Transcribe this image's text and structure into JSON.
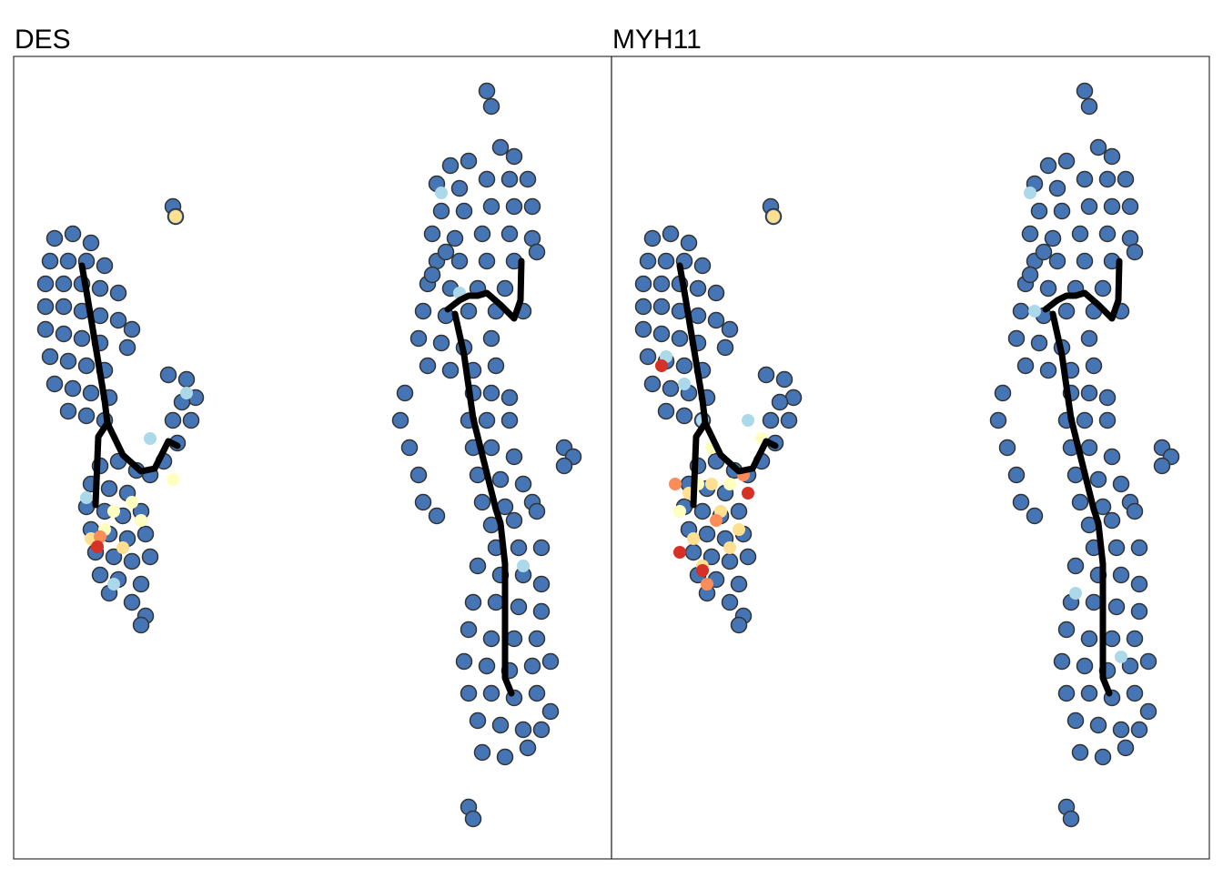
{
  "chart_data": {
    "type": "scatter",
    "xlim": [
      0,
      657
    ],
    "ylim": [
      882,
      0
    ],
    "color": "#4575b4",
    "x": [
      45,
      65,
      85,
      40,
      60,
      80,
      100,
      35,
      55,
      75,
      95,
      115,
      35,
      55,
      75,
      95,
      115,
      130,
      35,
      55,
      75,
      95,
      125,
      40,
      60,
      80,
      100,
      45,
      65,
      85,
      105,
      60,
      80,
      100,
      170,
      190,
      200,
      185,
      175,
      195,
      180,
      165,
      150,
      95,
      115,
      135,
      85,
      105,
      125,
      80,
      100,
      120,
      140,
      85,
      105,
      125,
      145,
      90,
      110,
      130,
      150,
      95,
      115,
      140,
      105,
      130,
      145,
      140,
      175,
      178,
      480,
      500,
      535,
      550,
      465,
      490,
      520,
      545,
      565,
      470,
      495,
      525,
      550,
      570,
      460,
      485,
      515,
      545,
      570,
      465,
      490,
      520,
      550,
      575,
      455,
      480,
      510,
      540,
      450,
      475,
      500,
      530,
      560,
      445,
      470,
      495,
      525,
      455,
      480,
      505,
      530,
      430,
      425,
      435,
      445,
      450,
      465,
      475,
      460,
      505,
      525,
      545,
      500,
      520,
      545,
      505,
      525,
      550,
      510,
      535,
      560,
      515,
      540,
      570,
      525,
      550,
      575,
      530,
      555,
      580,
      535,
      560,
      580,
      510,
      505,
      530,
      555,
      580,
      500,
      525,
      550,
      575,
      495,
      520,
      545,
      570,
      590,
      500,
      525,
      550,
      575,
      590,
      510,
      535,
      560,
      580,
      515,
      540,
      565,
      500,
      505,
      520,
      525,
      605,
      615,
      605
    ],
    "y": [
      200,
      195,
      205,
      225,
      225,
      225,
      230,
      250,
      250,
      250,
      255,
      260,
      275,
      275,
      280,
      285,
      290,
      300,
      300,
      305,
      310,
      315,
      320,
      330,
      335,
      340,
      345,
      360,
      365,
      370,
      375,
      390,
      395,
      400,
      350,
      355,
      375,
      380,
      400,
      400,
      425,
      445,
      460,
      450,
      445,
      455,
      470,
      475,
      480,
      495,
      500,
      505,
      500,
      520,
      525,
      530,
      525,
      545,
      550,
      555,
      550,
      570,
      575,
      580,
      590,
      600,
      615,
      625,
      165,
      176,
      120,
      115,
      100,
      110,
      140,
      145,
      135,
      135,
      135,
      170,
      170,
      165,
      165,
      165,
      195,
      200,
      195,
      195,
      200,
      225,
      225,
      225,
      225,
      215,
      250,
      255,
      255,
      255,
      280,
      285,
      280,
      280,
      280,
      310,
      315,
      320,
      310,
      340,
      345,
      345,
      340,
      370,
      400,
      430,
      460,
      490,
      505,
      215,
      240,
      370,
      370,
      375,
      400,
      400,
      400,
      430,
      430,
      440,
      460,
      465,
      470,
      490,
      495,
      490,
      515,
      510,
      500,
      540,
      540,
      540,
      570,
      570,
      580,
      560,
      600,
      600,
      605,
      610,
      630,
      640,
      640,
      640,
      665,
      670,
      675,
      670,
      665,
      700,
      700,
      705,
      700,
      720,
      730,
      735,
      740,
      740,
      765,
      770,
      760,
      825,
      838,
      38,
      55,
      430,
      440,
      450
    ],
    "lines": [
      {
        "x": [
          75,
          80,
          90,
          100,
          103,
          93,
          90
        ],
        "y": [
          230,
          258,
          318,
          378,
          403,
          418,
          493
        ]
      },
      {
        "x": [
          103,
          120,
          140,
          155,
          170,
          180
        ],
        "y": [
          403,
          438,
          456,
          453,
          423,
          428
        ]
      },
      {
        "x": [
          477,
          490,
          500,
          510,
          520,
          535,
          550,
          557,
          558
        ],
        "y": [
          278,
          268,
          263,
          263,
          260,
          273,
          288,
          268,
          225
        ]
      },
      {
        "x": [
          485,
          495,
          505,
          515,
          530,
          535,
          540,
          540,
          540,
          547
        ],
        "y": [
          283,
          328,
          398,
          438,
          498,
          513,
          558,
          638,
          683,
          700
        ]
      }
    ],
    "facets": [
      {
        "title": "DES",
        "series": [
          {
            "color": "#abd9e9",
            "x": [
              80,
              150,
              190,
              110,
              470,
              490,
              560
            ],
            "y": [
              485,
              420,
              370,
              580,
              150,
              260,
              560
            ]
          },
          {
            "color": "#ffffbf",
            "x": [
              110,
              130,
              100,
              140,
              175
            ],
            "y": [
              500,
              490,
              520,
              510,
              465
            ]
          },
          {
            "color": "#fee090",
            "x": [
              85,
              120,
              178
            ],
            "y": [
              530,
              540,
              176
            ]
          },
          {
            "color": "#fc8d59",
            "x": [
              95
            ],
            "y": [
              528
            ]
          },
          {
            "color": "#d73027",
            "x": [
              92
            ],
            "y": [
              539
            ]
          }
        ]
      },
      {
        "title": "MYH11",
        "series": [
          {
            "color": "#abd9e9",
            "x": [
              60,
              80,
              100,
              150,
              460,
              465,
              510,
              560
            ],
            "y": [
              330,
              360,
              400,
              400,
              150,
              280,
              590,
              660
            ]
          },
          {
            "color": "#ffffbf",
            "x": [
              110,
              95,
              130,
              165,
              75
            ],
            "y": [
              430,
              470,
              470,
              420,
              500
            ]
          },
          {
            "color": "#fee090",
            "x": [
              85,
              110,
              120,
              140,
              90,
              130,
              100,
              178
            ],
            "y": [
              480,
              470,
              500,
              520,
              530,
              540,
              560,
              176
            ]
          },
          {
            "color": "#fc8d59",
            "x": [
              115,
              145,
              105,
              70
            ],
            "y": [
              510,
              460,
              580,
              470
            ]
          },
          {
            "color": "#d73027",
            "x": [
              75,
              100,
              150,
              55
            ],
            "y": [
              545,
              565,
              480,
              340
            ]
          }
        ]
      }
    ]
  }
}
